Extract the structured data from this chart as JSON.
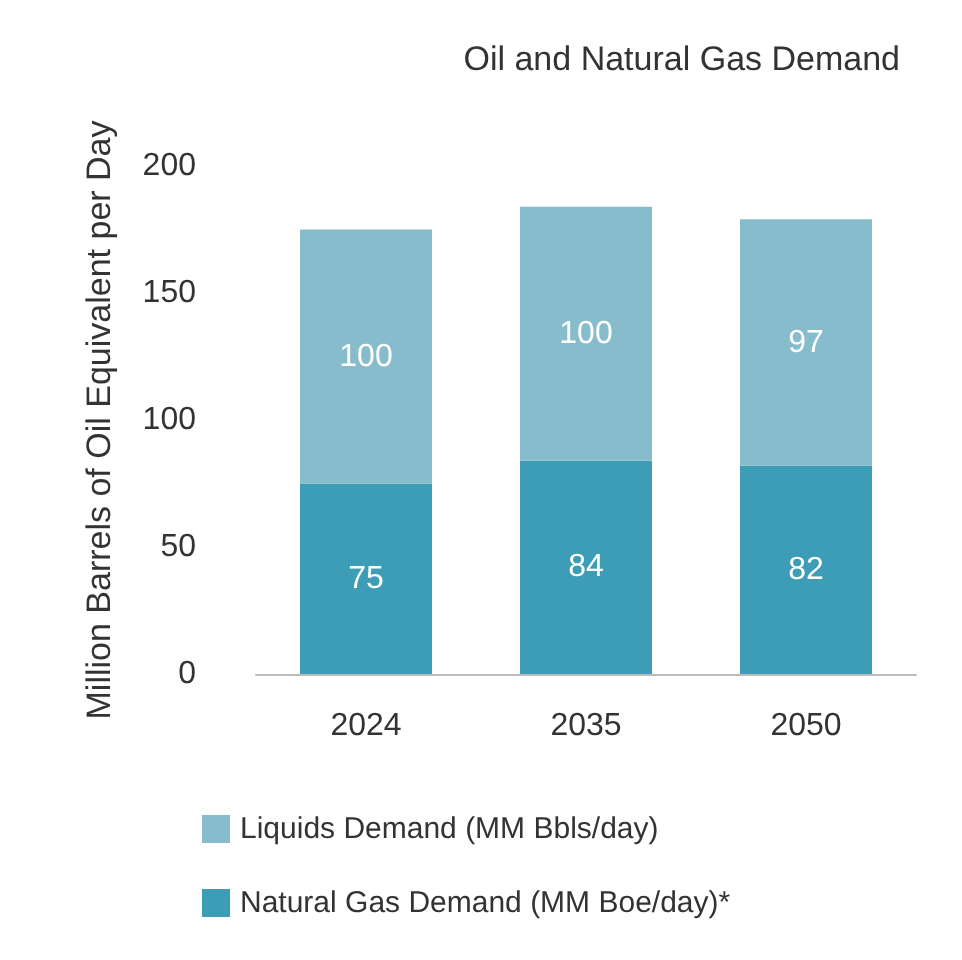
{
  "chart_data": {
    "type": "bar",
    "title": "Oil and Natural Gas Demand",
    "ylabel": "Million Barrels of Oil Equivalent per Day",
    "categories": [
      "2024",
      "2035",
      "2050"
    ],
    "stacked": true,
    "data_labels": true,
    "series": [
      {
        "name": "Natural Gas Demand (MM Boe/day)*",
        "color": "#3d9cb6",
        "values": [
          75,
          84,
          82
        ]
      },
      {
        "name": "Liquids Demand (MM Bbls/day)",
        "color": "#86bccb",
        "values": [
          100,
          100,
          97
        ]
      }
    ],
    "ylim": [
      0,
      200
    ],
    "yticks": [
      0,
      50,
      100,
      150,
      200
    ],
    "grid": false,
    "legend": "bottom"
  }
}
